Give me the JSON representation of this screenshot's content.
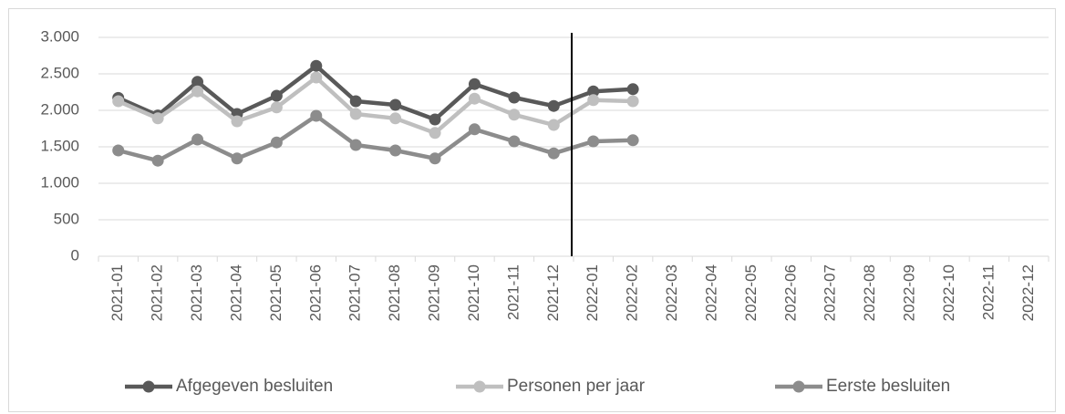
{
  "chart_data": {
    "type": "line",
    "categories": [
      "2021-01",
      "2021-02",
      "2021-03",
      "2021-04",
      "2021-05",
      "2021-06",
      "2021-07",
      "2021-08",
      "2021-09",
      "2021-10",
      "2021-11",
      "2021-12",
      "2022-01",
      "2022-02",
      "2022-03",
      "2022-04",
      "2022-05",
      "2022-06",
      "2022-07",
      "2022-08",
      "2022-09",
      "2022-10",
      "2022-11",
      "2022-12"
    ],
    "series": [
      {
        "name": "Afgegeven besluiten",
        "color": "#595959",
        "values": [
          2170,
          1930,
          2390,
          1950,
          2200,
          2610,
          2125,
          2075,
          1875,
          2360,
          2175,
          2060,
          2260,
          2290,
          null,
          null,
          null,
          null,
          null,
          null,
          null,
          null,
          null,
          null
        ]
      },
      {
        "name": "Personen per jaar",
        "color": "#bfbfbf",
        "values": [
          2125,
          1890,
          2260,
          1850,
          2040,
          2450,
          1950,
          1890,
          1690,
          2160,
          1940,
          1800,
          2140,
          2125,
          null,
          null,
          null,
          null,
          null,
          null,
          null,
          null,
          null,
          null
        ]
      },
      {
        "name": "Eerste besluiten",
        "color": "#8c8c8c",
        "values": [
          1450,
          1310,
          1600,
          1340,
          1560,
          1925,
          1525,
          1450,
          1340,
          1740,
          1575,
          1410,
          1575,
          1590,
          null,
          null,
          null,
          null,
          null,
          null,
          null,
          null,
          null,
          null
        ]
      }
    ],
    "ylim": [
      0,
      3000
    ],
    "yticks": [
      0,
      500,
      {
        "value": 1000,
        "label": "1.000"
      },
      {
        "value": 1500,
        "label": "1.500"
      },
      {
        "value": 2000,
        "label": "2.000"
      },
      {
        "value": 2500,
        "label": "2.500"
      },
      {
        "value": 3000,
        "label": "3.000"
      }
    ],
    "grid": true,
    "legend": "bottom"
  }
}
